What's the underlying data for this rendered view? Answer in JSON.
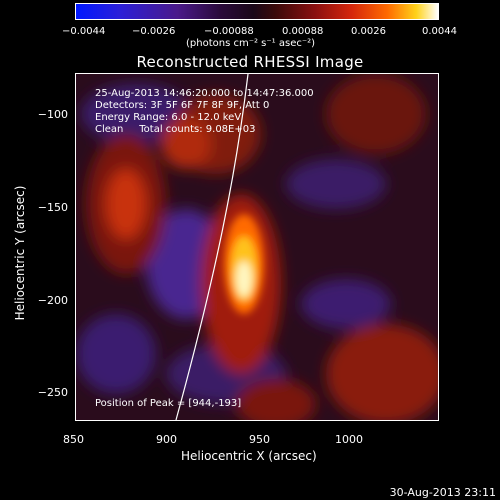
{
  "colorbar": {
    "ticks": [
      "−0.0044",
      "−0.0026",
      "−0.00088",
      "0.00088",
      "0.0026",
      "0.0044"
    ],
    "unit": "(photons cm⁻² s⁻¹ asec⁻²)",
    "range": [
      -0.0044,
      0.0044
    ]
  },
  "title": "Reconstructed RHESSI Image",
  "annotations": {
    "time_range": "25-Aug-2013 14:46:20.000 to 14:47:36.000",
    "detectors": "Detectors: 3F 5F 6F 7F 8F 9F, Att 0",
    "energy": "Energy Range: 6.0 - 12.0 keV",
    "clean": "Clean     Total counts: 9.08E+03",
    "peak": "Position of Peak = [944,-193]"
  },
  "axes": {
    "xlabel": "Heliocentric X (arcsec)",
    "ylabel": "Heliocentric Y (arcsec)",
    "xticks": [
      "850",
      "900",
      "950",
      "1000"
    ],
    "yticks": [
      "−100",
      "−150",
      "−200",
      "−250"
    ],
    "xlim": [
      847,
      1040
    ],
    "ylim": [
      -270,
      -82
    ]
  },
  "timestamp": "30-Aug-2013 23:11"
}
